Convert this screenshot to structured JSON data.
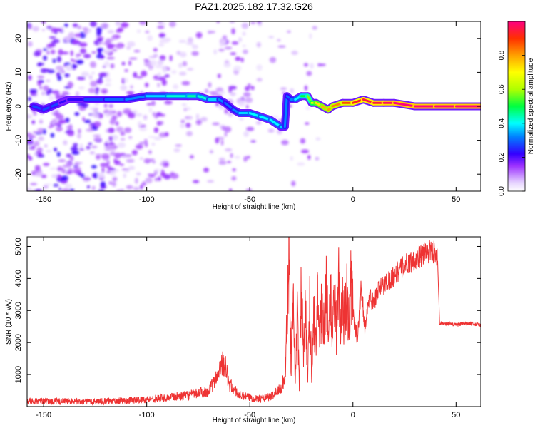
{
  "chart_data": [
    {
      "type": "heatmap",
      "title": "PAZ1.2025.182.17.32.G26",
      "xlabel": "Height of straight line (km)",
      "ylabel": "Frequency (Hz)",
      "xlim": [
        -158,
        62
      ],
      "ylim": [
        -25,
        25
      ],
      "x_ticks": [
        -150,
        -100,
        -50,
        0,
        50
      ],
      "y_ticks": [
        -20,
        -10,
        0,
        10,
        20
      ],
      "grid": false,
      "colorbar": {
        "label": "Normalized spectral amplitude",
        "range": [
          0,
          1
        ],
        "ticks": [
          0.0,
          0.2,
          0.4,
          0.6,
          0.8
        ]
      },
      "ridge": {
        "x": [
          -155,
          -150,
          -146,
          -142,
          -138,
          -130,
          -120,
          -110,
          -100,
          -90,
          -80,
          -75,
          -70,
          -65,
          -62,
          -58,
          -55,
          -50,
          -45,
          -40,
          -35,
          -33,
          -32,
          -30,
          -28,
          -25,
          -22,
          -20,
          -18,
          -15,
          -12,
          -10,
          -5,
          0,
          5,
          10,
          15,
          20,
          30,
          40,
          50,
          62
        ],
        "y": [
          0,
          -1,
          0,
          1,
          2,
          2,
          2,
          2,
          3,
          3,
          3,
          3,
          2,
          2,
          1,
          -1,
          -2,
          -2,
          -3,
          -4,
          -6,
          -6,
          3,
          2,
          2,
          3,
          3,
          1,
          1,
          0,
          -1,
          0,
          1,
          1,
          2,
          1,
          1,
          1,
          0,
          0,
          0,
          0
        ],
        "amplitude": [
          0.3,
          0.25,
          0.3,
          0.25,
          0.2,
          0.25,
          0.3,
          0.3,
          0.35,
          0.4,
          0.45,
          0.45,
          0.4,
          0.35,
          0.3,
          0.3,
          0.35,
          0.4,
          0.4,
          0.4,
          0.4,
          0.35,
          0.3,
          0.3,
          0.35,
          0.45,
          0.55,
          0.6,
          0.7,
          0.75,
          0.8,
          0.8,
          0.85,
          0.9,
          0.95,
          0.95,
          0.95,
          1.0,
          1.0,
          1.0,
          1.0,
          1.0
        ]
      }
    },
    {
      "type": "line",
      "xlabel": "Height of straight line (km)",
      "ylabel": "SNR (10 * v/v)",
      "xlim": [
        -158,
        62
      ],
      "ylim": [
        0,
        5300
      ],
      "x_ticks": [
        -150,
        -100,
        -50,
        0,
        50
      ],
      "y_ticks": [
        1000,
        2000,
        3000,
        4000,
        5000
      ],
      "grid": false,
      "series": [
        {
          "color": "#ee3333",
          "x": [
            -158,
            -150,
            -140,
            -130,
            -120,
            -110,
            -100,
            -90,
            -80,
            -75,
            -70,
            -66,
            -64,
            -62,
            -60,
            -55,
            -50,
            -45,
            -40,
            -38,
            -35,
            -33,
            -32,
            -31,
            -30,
            -29,
            -28,
            -27,
            -26,
            -25,
            -24,
            -23,
            -22,
            -21,
            -20,
            -19,
            -18,
            -17,
            -16,
            -15,
            -14,
            -13,
            -12,
            -11,
            -10,
            -9,
            -8,
            -7,
            -6,
            -5,
            -4,
            -3,
            -2,
            -1,
            0,
            2,
            4,
            6,
            8,
            10,
            12,
            15,
            20,
            25,
            30,
            35,
            40,
            41,
            42,
            45,
            50,
            55,
            62
          ],
          "y": [
            180,
            160,
            170,
            150,
            170,
            190,
            220,
            280,
            350,
            420,
            480,
            900,
            1400,
            1300,
            700,
            350,
            280,
            250,
            300,
            400,
            600,
            900,
            2500,
            5200,
            1200,
            3800,
            800,
            2900,
            600,
            4000,
            1500,
            3500,
            700,
            3200,
            1100,
            2800,
            1900,
            3600,
            2100,
            3300,
            2600,
            3900,
            2300,
            3700,
            2000,
            3500,
            2400,
            4100,
            2600,
            3200,
            2800,
            3400,
            2500,
            3800,
            3000,
            2100,
            3700,
            2400,
            3500,
            3200,
            3600,
            3800,
            4100,
            4400,
            4600,
            4800,
            4850,
            4700,
            2600,
            2600,
            2550,
            2600,
            2550
          ]
        }
      ]
    }
  ]
}
